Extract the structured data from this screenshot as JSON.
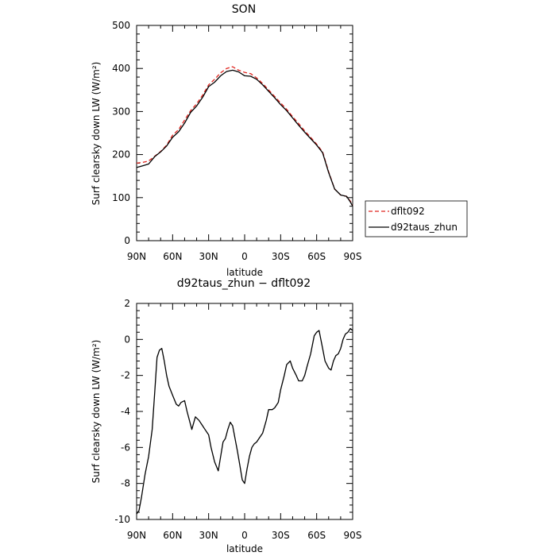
{
  "legend": {
    "entries": [
      {
        "label": "dflt092",
        "color": "#e0241e",
        "dash": "dashed"
      },
      {
        "label": "d92taus_zhun",
        "color": "#000000",
        "dash": "solid"
      }
    ]
  },
  "chart_data": [
    {
      "type": "line",
      "title": "SON",
      "xlabel": "latitude",
      "ylabel": "Surf clearsky down LW (W/m²)",
      "x_ticks": [
        "90N",
        "60N",
        "30N",
        "0",
        "30S",
        "60S",
        "90S"
      ],
      "x_tick_values": [
        90,
        60,
        30,
        0,
        -30,
        -60,
        -90
      ],
      "xlim": [
        90,
        -90
      ],
      "ylim": [
        0,
        500
      ],
      "y_ticks": [
        0,
        100,
        200,
        300,
        400,
        500
      ],
      "grid": false,
      "legend_position": "outside-right",
      "series": [
        {
          "name": "dflt092",
          "color": "#e0241e",
          "dash": "dashed",
          "x": [
            90,
            85,
            80,
            75,
            70,
            65,
            60,
            55,
            50,
            45,
            40,
            35,
            30,
            25,
            20,
            15,
            10,
            5,
            0,
            -5,
            -10,
            -15,
            -20,
            -25,
            -30,
            -35,
            -40,
            -45,
            -50,
            -55,
            -60,
            -65,
            -70,
            -75,
            -80,
            -85,
            -88,
            -90
          ],
          "y": [
            180,
            182,
            185,
            196,
            207,
            222,
            245,
            258,
            280,
            302,
            318,
            338,
            362,
            375,
            390,
            400,
            404,
            396,
            391,
            388,
            378,
            365,
            350,
            335,
            320,
            305,
            288,
            272,
            255,
            240,
            224,
            206,
            160,
            120,
            106,
            103,
            92,
            82
          ]
        },
        {
          "name": "d92taus_zhun",
          "color": "#000000",
          "dash": "solid",
          "x": [
            90,
            85,
            80,
            75,
            70,
            65,
            60,
            55,
            50,
            45,
            40,
            35,
            30,
            25,
            20,
            15,
            10,
            5,
            0,
            -5,
            -10,
            -15,
            -20,
            -25,
            -30,
            -35,
            -40,
            -45,
            -50,
            -55,
            -60,
            -65,
            -70,
            -75,
            -80,
            -85,
            -88,
            -90
          ],
          "y": [
            170,
            174,
            178,
            195,
            206,
            220,
            240,
            253,
            273,
            298,
            313,
            333,
            358,
            368,
            383,
            393,
            396,
            392,
            383,
            382,
            375,
            362,
            347,
            332,
            316,
            302,
            285,
            268,
            252,
            237,
            222,
            204,
            158,
            120,
            106,
            103,
            90,
            80
          ]
        }
      ]
    },
    {
      "type": "line",
      "title": "d92taus_zhun − dflt092",
      "xlabel": "latitude",
      "ylabel": "Surf clearsky down LW (W/m²)",
      "x_ticks": [
        "90N",
        "60N",
        "30N",
        "0",
        "30S",
        "60S",
        "90S"
      ],
      "x_tick_values": [
        90,
        60,
        30,
        0,
        -30,
        -60,
        -90
      ],
      "xlim": [
        90,
        -90
      ],
      "ylim": [
        -10,
        2
      ],
      "y_ticks": [
        -10,
        -8,
        -6,
        -4,
        -2,
        0,
        2
      ],
      "grid": false,
      "series": [
        {
          "name": "d92taus_zhun",
          "color": "#000000",
          "dash": "solid",
          "x": [
            90,
            88,
            86,
            83,
            80,
            77,
            75,
            73,
            71,
            69,
            67,
            65,
            63,
            60,
            57,
            55,
            53,
            50,
            48,
            46,
            44,
            41,
            38,
            35,
            33,
            30,
            28,
            25,
            22,
            20,
            18,
            16,
            14,
            12,
            10,
            8,
            6,
            4,
            2,
            0,
            -2,
            -4,
            -6,
            -8,
            -10,
            -12,
            -15,
            -18,
            -20,
            -23,
            -25,
            -28,
            -30,
            -33,
            -35,
            -38,
            -40,
            -43,
            -45,
            -48,
            -50,
            -52,
            -55,
            -58,
            -60,
            -62,
            -65,
            -67,
            -70,
            -72,
            -74,
            -76,
            -78,
            -80,
            -82,
            -84,
            -86,
            -88,
            -90
          ],
          "y": [
            -9.7,
            -9.5,
            -8.8,
            -7.5,
            -6.5,
            -5.0,
            -3.0,
            -1.0,
            -0.6,
            -0.5,
            -1.2,
            -2.0,
            -2.6,
            -3.1,
            -3.6,
            -3.7,
            -3.5,
            -3.4,
            -4.0,
            -4.5,
            -5.0,
            -4.3,
            -4.5,
            -4.8,
            -5.0,
            -5.3,
            -6.0,
            -6.8,
            -7.3,
            -6.5,
            -5.7,
            -5.5,
            -5.0,
            -4.6,
            -4.8,
            -5.5,
            -6.2,
            -7.0,
            -7.8,
            -8.0,
            -7.2,
            -6.5,
            -6.0,
            -5.8,
            -5.7,
            -5.5,
            -5.2,
            -4.5,
            -3.9,
            -3.9,
            -3.8,
            -3.5,
            -2.8,
            -2.0,
            -1.4,
            -1.2,
            -1.6,
            -2.0,
            -2.3,
            -2.3,
            -2.0,
            -1.5,
            -0.8,
            0.2,
            0.4,
            0.5,
            -0.5,
            -1.2,
            -1.6,
            -1.7,
            -1.2,
            -0.9,
            -0.8,
            -0.5,
            0.0,
            0.3,
            0.4,
            0.6,
            0.5
          ]
        }
      ]
    }
  ]
}
